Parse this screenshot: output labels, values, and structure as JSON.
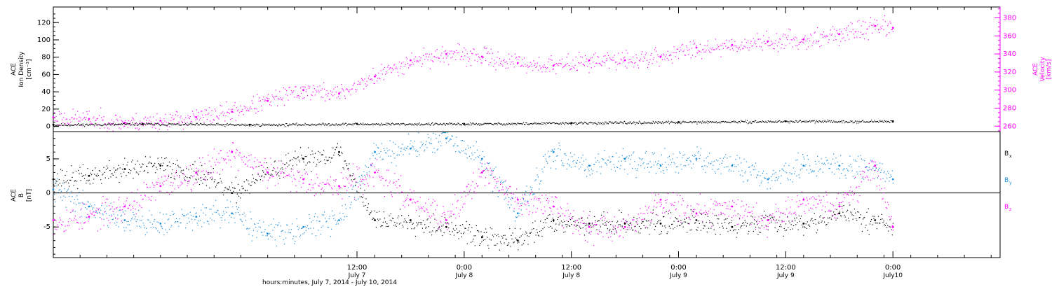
{
  "colors": {
    "axis": "#000000",
    "density": "#000000",
    "velocity": "#ff00ff",
    "bx": "#000000",
    "by": "#1a8cd8",
    "bz": "#ff00ff",
    "zero_line": "#000000"
  },
  "x_axis": {
    "ticks": [
      {
        "time": "12:00",
        "date": "July 7"
      },
      {
        "time": "0:00",
        "date": "July 8"
      },
      {
        "time": "12:00",
        "date": "July 8"
      },
      {
        "time": "0:00",
        "date": "July 9"
      },
      {
        "time": "12:00",
        "date": "July 9"
      },
      {
        "time": "0:00",
        "date": "July10"
      }
    ],
    "label": "hours:minutes, July  7, 2014 - July 10, 2014"
  },
  "chart_data": [
    {
      "type": "scatter",
      "panel": "top",
      "left_axis": {
        "label_line1": "ACE",
        "label_line2": "Ion Density",
        "label_line3": "[cm⁻³]",
        "ticks": [
          "0",
          "20",
          "40",
          "60",
          "80",
          "100",
          "120"
        ],
        "ylim": [
          -6,
          138
        ]
      },
      "right_axis": {
        "label_line1": "ACE",
        "label_line2": "Velocity",
        "label_line3": "[km/s]",
        "ticks": [
          "260",
          "280",
          "300",
          "320",
          "340",
          "360",
          "380"
        ],
        "ylim": [
          254,
          392
        ]
      },
      "xlim": [
        "2014-07-06T02:00",
        "2014-07-10T12:00"
      ],
      "series": [
        {
          "key": "density",
          "axis": "left",
          "x": [
            "2014-07-06T02:00",
            "2014-07-06T12:00",
            "2014-07-07T00:00",
            "2014-07-07T12:00",
            "2014-07-08T00:00",
            "2014-07-08T12:00",
            "2014-07-09T00:00",
            "2014-07-09T12:00",
            "2014-07-10T00:00"
          ],
          "y": [
            2,
            3,
            2,
            3,
            3,
            4,
            5,
            6,
            6
          ]
        },
        {
          "key": "velocity",
          "axis": "right",
          "x": [
            "2014-07-06T02:00",
            "2014-07-06T06:00",
            "2014-07-06T10:00",
            "2014-07-06T14:00",
            "2014-07-06T18:00",
            "2014-07-06T22:00",
            "2014-07-07T02:00",
            "2014-07-07T06:00",
            "2014-07-07T10:00",
            "2014-07-07T14:00",
            "2014-07-07T18:00",
            "2014-07-07T22:00",
            "2014-07-08T02:00",
            "2014-07-08T06:00",
            "2014-07-08T10:00",
            "2014-07-08T14:00",
            "2014-07-08T18:00",
            "2014-07-08T22:00",
            "2014-07-09T02:00",
            "2014-07-09T06:00",
            "2014-07-09T10:00",
            "2014-07-09T14:00",
            "2014-07-09T18:00",
            "2014-07-09T22:00",
            "2014-07-10T00:00"
          ],
          "y": [
            270,
            268,
            264,
            266,
            270,
            276,
            288,
            300,
            296,
            315,
            333,
            340,
            337,
            330,
            327,
            333,
            333,
            337,
            347,
            350,
            354,
            356,
            362,
            371,
            369
          ]
        }
      ]
    },
    {
      "type": "scatter",
      "panel": "bottom",
      "left_axis": {
        "label_line1": "ACE",
        "label_line2": "B",
        "label_line3": "[nT]",
        "ticks": [
          "-5",
          "0",
          "5"
        ],
        "ylim": [
          -9.5,
          9
        ]
      },
      "legend": {
        "bx": "B",
        "bx_sub": "x",
        "by": "B",
        "by_sub": "y",
        "bz": "B",
        "bz_sub": "z"
      },
      "xlim": [
        "2014-07-06T02:00",
        "2014-07-10T12:00"
      ],
      "series": [
        {
          "key": "bx",
          "x": [
            "2014-07-06T02:00",
            "2014-07-06T06:00",
            "2014-07-06T10:00",
            "2014-07-06T14:00",
            "2014-07-06T18:00",
            "2014-07-06T22:00",
            "2014-07-07T02:00",
            "2014-07-07T06:00",
            "2014-07-07T10:00",
            "2014-07-07T14:00",
            "2014-07-07T18:00",
            "2014-07-07T22:00",
            "2014-07-08T02:00",
            "2014-07-08T06:00",
            "2014-07-08T10:00",
            "2014-07-08T14:00",
            "2014-07-08T18:00",
            "2014-07-08T22:00",
            "2014-07-09T02:00",
            "2014-07-09T06:00",
            "2014-07-09T10:00",
            "2014-07-09T14:00",
            "2014-07-09T18:00",
            "2014-07-09T22:00",
            "2014-07-10T00:00"
          ],
          "y": [
            2,
            2.5,
            3.5,
            4,
            3,
            0,
            3,
            5,
            6,
            -4,
            -4,
            -5,
            -6.5,
            -7,
            -4,
            -4.5,
            -4.5,
            -4.5,
            -4,
            -5,
            -4,
            -4.5,
            -3,
            -4,
            -5
          ]
        },
        {
          "key": "by",
          "x": [
            "2014-07-06T02:00",
            "2014-07-06T06:00",
            "2014-07-06T10:00",
            "2014-07-06T14:00",
            "2014-07-06T18:00",
            "2014-07-06T22:00",
            "2014-07-07T02:00",
            "2014-07-07T06:00",
            "2014-07-07T10:00",
            "2014-07-07T14:00",
            "2014-07-07T18:00",
            "2014-07-07T22:00",
            "2014-07-08T02:00",
            "2014-07-08T06:00",
            "2014-07-08T10:00",
            "2014-07-08T14:00",
            "2014-07-08T18:00",
            "2014-07-08T22:00",
            "2014-07-09T02:00",
            "2014-07-09T06:00",
            "2014-07-09T10:00",
            "2014-07-09T14:00",
            "2014-07-09T18:00",
            "2014-07-09T22:00",
            "2014-07-10T00:00"
          ],
          "y": [
            0.5,
            -2,
            -4,
            -4.5,
            -3.5,
            -3,
            -6,
            -5,
            -4,
            6,
            6.5,
            8,
            5,
            -3,
            6,
            4,
            5,
            4,
            5,
            4,
            2,
            4,
            4,
            4,
            2
          ]
        },
        {
          "key": "bz",
          "x": [
            "2014-07-06T02:00",
            "2014-07-06T06:00",
            "2014-07-06T10:00",
            "2014-07-06T14:00",
            "2014-07-06T18:00",
            "2014-07-06T22:00",
            "2014-07-07T02:00",
            "2014-07-07T06:00",
            "2014-07-07T10:00",
            "2014-07-07T14:00",
            "2014-07-07T18:00",
            "2014-07-07T22:00",
            "2014-07-08T02:00",
            "2014-07-08T06:00",
            "2014-07-08T10:00",
            "2014-07-08T14:00",
            "2014-07-08T18:00",
            "2014-07-08T22:00",
            "2014-07-09T02:00",
            "2014-07-09T06:00",
            "2014-07-09T10:00",
            "2014-07-09T14:00",
            "2014-07-09T18:00",
            "2014-07-09T22:00",
            "2014-07-10T00:00"
          ],
          "y": [
            -4,
            -3.5,
            -2,
            1,
            3,
            6,
            3,
            2,
            1,
            3,
            -1,
            -4,
            3,
            -1,
            -2,
            -5,
            -5,
            -1,
            -3,
            -2,
            -4,
            -1,
            -2,
            4,
            -5
          ]
        }
      ]
    }
  ]
}
